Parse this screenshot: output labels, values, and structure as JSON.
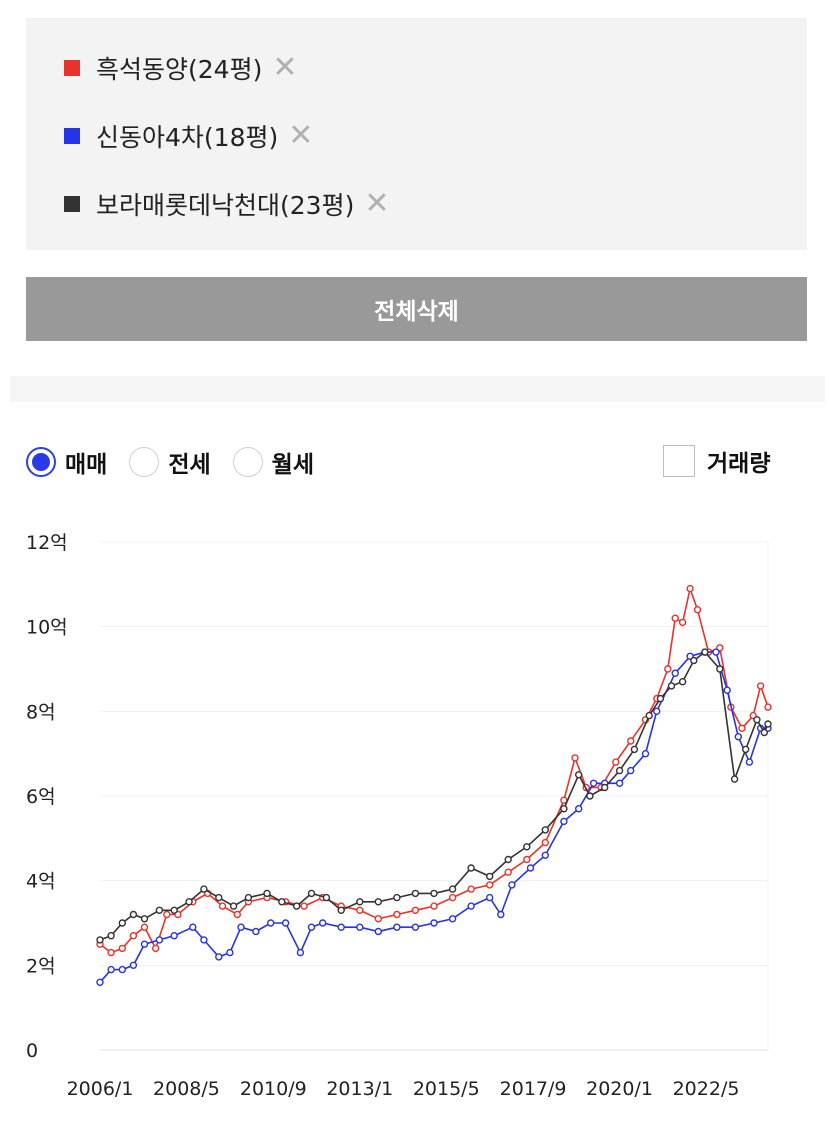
{
  "compare_list": [
    {
      "name": "흑석동양(24평)",
      "color": "#e8332a"
    },
    {
      "name": "신동아4차(18평)",
      "color": "#2633e6"
    },
    {
      "name": "보라매롯데낙천대(23평)",
      "color": "#333333"
    }
  ],
  "remove_glyph": "✕",
  "delete_all_label": "전체삭제",
  "trade_types": [
    {
      "label": "매매",
      "selected": true
    },
    {
      "label": "전세",
      "selected": false
    },
    {
      "label": "월세",
      "selected": false
    }
  ],
  "volume_toggle": {
    "label": "거래량",
    "checked": false
  },
  "chart_data": {
    "type": "line",
    "ylim": [
      0,
      12
    ],
    "y_ticks": [
      {
        "v": 0,
        "label": "0"
      },
      {
        "v": 2,
        "label": "2억"
      },
      {
        "v": 4,
        "label": "4억"
      },
      {
        "v": 6,
        "label": "6억"
      },
      {
        "v": 8,
        "label": "8억"
      },
      {
        "v": 10,
        "label": "10억"
      },
      {
        "v": 12,
        "label": "12억"
      }
    ],
    "xlim": [
      2006.0,
      2024.0
    ],
    "x_ticks": [
      {
        "v": 2006.0,
        "label": "2006/1"
      },
      {
        "v": 2008.33,
        "label": "2008/5"
      },
      {
        "v": 2010.67,
        "label": "2010/9"
      },
      {
        "v": 2013.0,
        "label": "2013/1"
      },
      {
        "v": 2015.33,
        "label": "2015/5"
      },
      {
        "v": 2017.67,
        "label": "2017/9"
      },
      {
        "v": 2020.0,
        "label": "2020/1"
      },
      {
        "v": 2022.33,
        "label": "2022/5"
      }
    ],
    "grid": true,
    "series": [
      {
        "name": "흑석동양(24평)",
        "color": "#e8332a",
        "points": [
          [
            2006.0,
            2.5
          ],
          [
            2006.3,
            2.3
          ],
          [
            2006.6,
            2.4
          ],
          [
            2006.9,
            2.7
          ],
          [
            2007.2,
            2.9
          ],
          [
            2007.5,
            2.4
          ],
          [
            2007.8,
            3.2
          ],
          [
            2008.1,
            3.2
          ],
          [
            2008.5,
            3.5
          ],
          [
            2008.9,
            3.7
          ],
          [
            2009.3,
            3.4
          ],
          [
            2009.7,
            3.2
          ],
          [
            2010.0,
            3.5
          ],
          [
            2010.5,
            3.6
          ],
          [
            2011.0,
            3.5
          ],
          [
            2011.5,
            3.4
          ],
          [
            2012.0,
            3.6
          ],
          [
            2012.5,
            3.4
          ],
          [
            2013.0,
            3.3
          ],
          [
            2013.5,
            3.1
          ],
          [
            2014.0,
            3.2
          ],
          [
            2014.5,
            3.3
          ],
          [
            2015.0,
            3.4
          ],
          [
            2015.5,
            3.6
          ],
          [
            2016.0,
            3.8
          ],
          [
            2016.5,
            3.9
          ],
          [
            2017.0,
            4.2
          ],
          [
            2017.5,
            4.5
          ],
          [
            2018.0,
            4.9
          ],
          [
            2018.5,
            5.9
          ],
          [
            2018.8,
            6.9
          ],
          [
            2019.1,
            6.2
          ],
          [
            2019.5,
            6.2
          ],
          [
            2019.9,
            6.8
          ],
          [
            2020.3,
            7.3
          ],
          [
            2020.7,
            7.8
          ],
          [
            2021.0,
            8.3
          ],
          [
            2021.3,
            9.0
          ],
          [
            2021.5,
            10.2
          ],
          [
            2021.7,
            10.1
          ],
          [
            2021.9,
            10.9
          ],
          [
            2022.1,
            10.4
          ],
          [
            2022.4,
            9.4
          ],
          [
            2022.7,
            9.5
          ],
          [
            2023.0,
            8.1
          ],
          [
            2023.3,
            7.6
          ],
          [
            2023.6,
            7.9
          ],
          [
            2023.8,
            8.6
          ],
          [
            2024.0,
            8.1
          ]
        ]
      },
      {
        "name": "신동아4차(18평)",
        "color": "#2633e6",
        "points": [
          [
            2006.0,
            1.6
          ],
          [
            2006.3,
            1.9
          ],
          [
            2006.6,
            1.9
          ],
          [
            2006.9,
            2.0
          ],
          [
            2007.2,
            2.5
          ],
          [
            2007.6,
            2.6
          ],
          [
            2008.0,
            2.7
          ],
          [
            2008.5,
            2.9
          ],
          [
            2008.8,
            2.6
          ],
          [
            2009.2,
            2.2
          ],
          [
            2009.5,
            2.3
          ],
          [
            2009.8,
            2.9
          ],
          [
            2010.2,
            2.8
          ],
          [
            2010.6,
            3.0
          ],
          [
            2011.0,
            3.0
          ],
          [
            2011.4,
            2.3
          ],
          [
            2011.7,
            2.9
          ],
          [
            2012.0,
            3.0
          ],
          [
            2012.5,
            2.9
          ],
          [
            2013.0,
            2.9
          ],
          [
            2013.5,
            2.8
          ],
          [
            2014.0,
            2.9
          ],
          [
            2014.5,
            2.9
          ],
          [
            2015.0,
            3.0
          ],
          [
            2015.5,
            3.1
          ],
          [
            2016.0,
            3.4
          ],
          [
            2016.5,
            3.6
          ],
          [
            2016.8,
            3.2
          ],
          [
            2017.1,
            3.9
          ],
          [
            2017.6,
            4.3
          ],
          [
            2018.0,
            4.6
          ],
          [
            2018.5,
            5.4
          ],
          [
            2018.9,
            5.7
          ],
          [
            2019.3,
            6.3
          ],
          [
            2019.6,
            6.3
          ],
          [
            2020.0,
            6.3
          ],
          [
            2020.3,
            6.6
          ],
          [
            2020.7,
            7.0
          ],
          [
            2021.0,
            8.0
          ],
          [
            2021.5,
            8.9
          ],
          [
            2021.9,
            9.3
          ],
          [
            2022.3,
            9.4
          ],
          [
            2022.6,
            9.4
          ],
          [
            2022.9,
            8.5
          ],
          [
            2023.2,
            7.4
          ],
          [
            2023.5,
            6.8
          ],
          [
            2023.8,
            7.6
          ],
          [
            2024.0,
            7.6
          ]
        ]
      },
      {
        "name": "보라매롯데낙천대(23평)",
        "color": "#333333",
        "points": [
          [
            2006.0,
            2.6
          ],
          [
            2006.3,
            2.7
          ],
          [
            2006.6,
            3.0
          ],
          [
            2006.9,
            3.2
          ],
          [
            2007.2,
            3.1
          ],
          [
            2007.6,
            3.3
          ],
          [
            2008.0,
            3.3
          ],
          [
            2008.4,
            3.5
          ],
          [
            2008.8,
            3.8
          ],
          [
            2009.2,
            3.6
          ],
          [
            2009.6,
            3.4
          ],
          [
            2010.0,
            3.6
          ],
          [
            2010.5,
            3.7
          ],
          [
            2010.9,
            3.5
          ],
          [
            2011.3,
            3.4
          ],
          [
            2011.7,
            3.7
          ],
          [
            2012.1,
            3.6
          ],
          [
            2012.5,
            3.3
          ],
          [
            2013.0,
            3.5
          ],
          [
            2013.5,
            3.5
          ],
          [
            2014.0,
            3.6
          ],
          [
            2014.5,
            3.7
          ],
          [
            2015.0,
            3.7
          ],
          [
            2015.5,
            3.8
          ],
          [
            2016.0,
            4.3
          ],
          [
            2016.5,
            4.1
          ],
          [
            2017.0,
            4.5
          ],
          [
            2017.5,
            4.8
          ],
          [
            2018.0,
            5.2
          ],
          [
            2018.5,
            5.7
          ],
          [
            2018.9,
            6.5
          ],
          [
            2019.2,
            6.0
          ],
          [
            2019.6,
            6.2
          ],
          [
            2020.0,
            6.6
          ],
          [
            2020.4,
            7.1
          ],
          [
            2020.8,
            7.9
          ],
          [
            2021.1,
            8.3
          ],
          [
            2021.4,
            8.6
          ],
          [
            2021.7,
            8.7
          ],
          [
            2022.0,
            9.2
          ],
          [
            2022.3,
            9.4
          ],
          [
            2022.7,
            9.0
          ],
          [
            2023.1,
            6.4
          ],
          [
            2023.4,
            7.1
          ],
          [
            2023.7,
            7.8
          ],
          [
            2023.9,
            7.5
          ],
          [
            2024.0,
            7.7
          ]
        ]
      }
    ]
  }
}
